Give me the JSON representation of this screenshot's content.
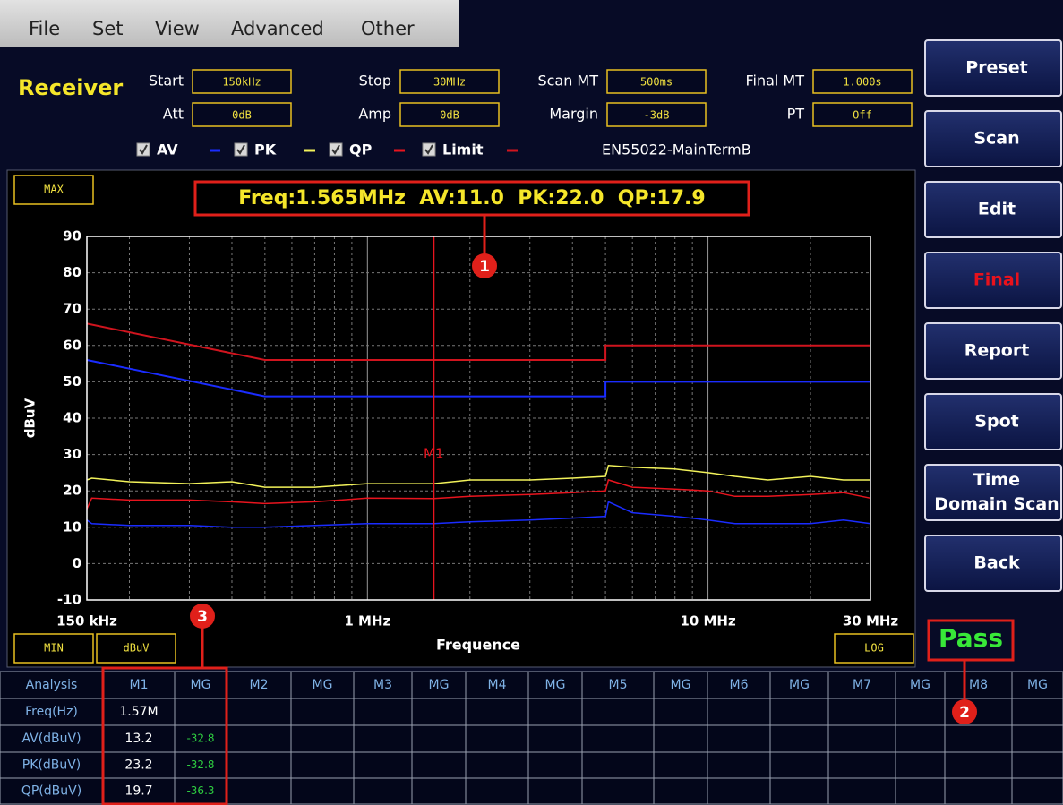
{
  "menu": [
    "File",
    "Set",
    "View",
    "Advanced",
    "Other"
  ],
  "header": {
    "title": "Receiver",
    "fields": [
      [
        {
          "label": "Start",
          "value": "150kHz"
        },
        {
          "label": "Stop",
          "value": "30MHz"
        },
        {
          "label": "Scan MT",
          "value": "500ms"
        },
        {
          "label": "Final MT",
          "value": "1.000s"
        }
      ],
      [
        {
          "label": "Att",
          "value": "0dB"
        },
        {
          "label": "Amp",
          "value": "0dB"
        },
        {
          "label": "Margin",
          "value": "-3dB"
        },
        {
          "label": "PT",
          "value": "Off"
        }
      ]
    ],
    "standard": "EN55022-MainTermB"
  },
  "buttons": [
    {
      "lines": [
        "Preset"
      ],
      "color": "#ffffff"
    },
    {
      "lines": [
        "Scan"
      ],
      "color": "#ffffff"
    },
    {
      "lines": [
        "Edit"
      ],
      "color": "#ffffff"
    },
    {
      "lines": [
        "Final"
      ],
      "color": "#e8121c"
    },
    {
      "lines": [
        "Report"
      ],
      "color": "#ffffff"
    },
    {
      "lines": [
        "Spot"
      ],
      "color": "#ffffff"
    },
    {
      "lines": [
        "Time",
        "Domain Scan"
      ],
      "color": "#ffffff"
    },
    {
      "lines": [
        "Back"
      ],
      "color": "#ffffff"
    }
  ],
  "chart_data": {
    "type": "line",
    "readout": "Freq:1.565MHz  AV:11.0  PK:22.0  QP:17.9",
    "max_label": "MAX",
    "min_label": "MIN",
    "unit_label": "dBuV",
    "scale_label": "LOG",
    "y_label": "dBuV",
    "x_label": "Frequence",
    "x_log": true,
    "grid": true,
    "xlim": [
      0.15,
      30
    ],
    "xticks": [
      {
        "value": 0.15,
        "label": "150 kHz"
      },
      {
        "value": 1,
        "label": "1 MHz"
      },
      {
        "value": 10,
        "label": "10 MHz"
      },
      {
        "value": 30,
        "label": "30 MHz"
      }
    ],
    "x_minor_grid": [
      0.2,
      0.3,
      0.4,
      0.5,
      0.6,
      0.7,
      0.8,
      0.9,
      2,
      3,
      4,
      5,
      6,
      7,
      8,
      9,
      20
    ],
    "ylim": [
      -10,
      90
    ],
    "yticks": [
      -10,
      0,
      10,
      20,
      30,
      40,
      50,
      60,
      70,
      80,
      90
    ],
    "series": [
      {
        "name": "AV",
        "color": "#1a2cff",
        "x": [
          0.15,
          0.155,
          0.2,
          0.3,
          0.4,
          0.5,
          0.7,
          1,
          1.565,
          2,
          3,
          4,
          5,
          5.1,
          6,
          8,
          10,
          12,
          15,
          20,
          25,
          30
        ],
        "values": [
          12,
          11,
          10.5,
          10.5,
          10,
          10,
          10.5,
          11,
          11,
          11.5,
          12,
          12.5,
          13,
          17,
          14,
          13,
          12,
          11,
          11,
          11,
          12,
          11
        ]
      },
      {
        "name": "PK",
        "color": "#f2f25a",
        "x": [
          0.15,
          0.155,
          0.2,
          0.3,
          0.4,
          0.5,
          0.7,
          1,
          1.565,
          2,
          3,
          4,
          5,
          5.1,
          6,
          8,
          10,
          12,
          15,
          20,
          25,
          30
        ],
        "values": [
          23,
          23.5,
          22.5,
          22,
          22.5,
          21,
          21,
          22,
          22,
          23,
          23,
          23.5,
          24,
          27,
          26.5,
          26,
          25,
          24,
          23,
          24,
          23,
          23
        ]
      },
      {
        "name": "QP",
        "color": "#e8141e",
        "x": [
          0.15,
          0.155,
          0.2,
          0.3,
          0.4,
          0.5,
          0.7,
          1,
          1.565,
          2,
          3,
          4,
          5,
          5.1,
          6,
          8,
          10,
          12,
          15,
          20,
          25,
          30
        ],
        "values": [
          15,
          18,
          17.5,
          17.5,
          17,
          16.5,
          17,
          18,
          17.9,
          18.5,
          19,
          19.5,
          20,
          23,
          21,
          20.5,
          20,
          18.5,
          18.5,
          19,
          19.5,
          18
        ]
      }
    ],
    "limit_label": "Limit",
    "limit_lines": [
      {
        "color": "#d0141e",
        "x": [
          0.15,
          0.5,
          5,
          5,
          30
        ],
        "values": [
          66,
          56,
          56,
          60,
          60
        ]
      },
      {
        "color": "#1a2cff",
        "x": [
          0.15,
          0.5,
          5,
          5,
          30
        ],
        "values": [
          56,
          46,
          46,
          50,
          50
        ]
      }
    ],
    "marker": {
      "label": "M1",
      "x": 1.565,
      "color": "#e8141e"
    }
  },
  "verdict": "Pass",
  "annotations": [
    "1",
    "2",
    "3"
  ],
  "table": {
    "header": [
      "Analysis",
      "M1",
      "MG",
      "M2",
      "MG",
      "M3",
      "MG",
      "M4",
      "MG",
      "M5",
      "MG",
      "M6",
      "MG",
      "M7",
      "MG",
      "M8",
      "MG"
    ],
    "rows": [
      {
        "label": "Freq(Hz)",
        "cells": [
          "1.57M"
        ]
      },
      {
        "label": "AV(dBuV)",
        "cells": [
          13.2,
          -32.8
        ]
      },
      {
        "label": "PK(dBuV)",
        "cells": [
          23.2,
          -32.8
        ]
      },
      {
        "label": "QP(dBuV)",
        "cells": [
          19.7,
          -36.3
        ]
      }
    ]
  }
}
